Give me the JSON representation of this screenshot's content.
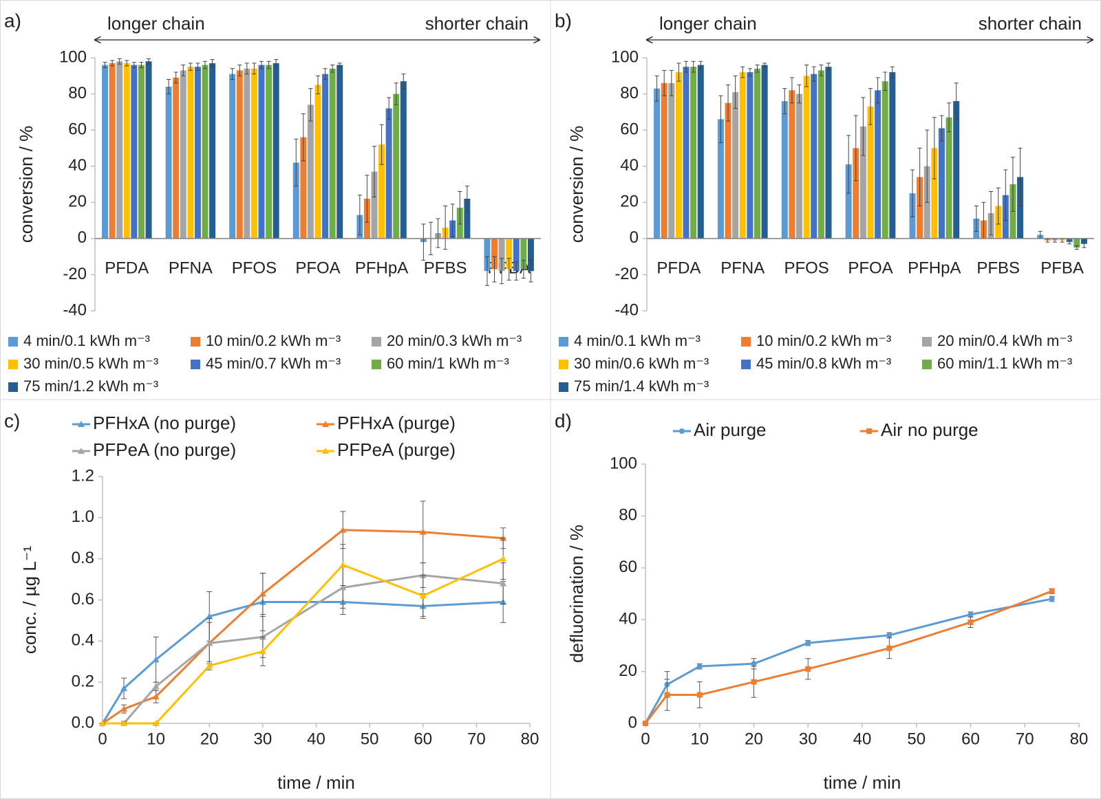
{
  "chart_data": [
    {
      "type": "bar",
      "label": "a)",
      "ylabel": "conversion / %",
      "annotations": [
        "longer chain",
        "shorter chain"
      ],
      "categories": [
        "PFDA",
        "PFNA",
        "PFOS",
        "PFOA",
        "PFHpA",
        "PFBS",
        "PFBA"
      ],
      "ylim": [
        -40,
        100
      ],
      "yticks": [
        -40,
        -20,
        0,
        20,
        40,
        60,
        80,
        100
      ],
      "grid": false,
      "series": [
        {
          "name": "4 min/0.1 kWh m⁻³",
          "color": "#5b9bd5",
          "values": [
            96,
            84,
            91,
            42,
            13,
            -2,
            -18
          ],
          "errors": [
            1.5,
            4,
            3,
            13,
            11,
            10,
            8
          ]
        },
        {
          "name": "10 min/0.2 kWh m⁻³",
          "color": "#ed7d31",
          "values": [
            97,
            89,
            93,
            56,
            22,
            0,
            -17
          ],
          "errors": [
            1.5,
            3,
            3,
            13,
            13,
            9,
            7
          ]
        },
        {
          "name": "20 min/0.3 kWh m⁻³",
          "color": "#a5a5a5",
          "values": [
            98,
            93,
            94,
            74,
            37,
            3,
            -18
          ],
          "errors": [
            1.5,
            3,
            3,
            9,
            14,
            8,
            7
          ]
        },
        {
          "name": "30 min/0.5 kWh m⁻³",
          "color": "#ffc000",
          "values": [
            97,
            95,
            94,
            85,
            52,
            6,
            -17
          ],
          "errors": [
            1.5,
            2,
            3,
            5,
            11,
            12,
            6
          ]
        },
        {
          "name": "45 min/0.7 kWh m⁻³",
          "color": "#4472c4",
          "values": [
            96,
            95,
            96,
            91,
            72,
            10,
            -18
          ],
          "errors": [
            1.5,
            2,
            2,
            3,
            6,
            9,
            5
          ]
        },
        {
          "name": "60 min/1 kWh m⁻³",
          "color": "#70ad47",
          "values": [
            96,
            96,
            96,
            94,
            80,
            17,
            -17
          ],
          "errors": [
            1.5,
            2,
            2,
            2,
            6,
            9,
            5
          ]
        },
        {
          "name": "75 min/1.2 kWh m⁻³",
          "color": "#255e91",
          "values": [
            98,
            97,
            97,
            96,
            87,
            22,
            -18
          ],
          "errors": [
            1.5,
            2,
            2,
            1,
            4,
            7,
            6
          ]
        }
      ]
    },
    {
      "type": "bar",
      "label": "b)",
      "ylabel": "conversion / %",
      "annotations": [
        "longer chain",
        "shorter chain"
      ],
      "categories": [
        "PFDA",
        "PFNA",
        "PFOS",
        "PFOA",
        "PFHpA",
        "PFBS",
        "PFBA"
      ],
      "ylim": [
        -40,
        100
      ],
      "yticks": [
        -40,
        -20,
        0,
        20,
        40,
        60,
        80,
        100
      ],
      "grid": false,
      "series": [
        {
          "name": "4 min/0.1 kWh m⁻³",
          "color": "#5b9bd5",
          "values": [
            83,
            66,
            76,
            41,
            25,
            11,
            2
          ],
          "errors": [
            7,
            13,
            7,
            16,
            13,
            7,
            2
          ]
        },
        {
          "name": "10 min/0.2 kWh m⁻³",
          "color": "#ed7d31",
          "values": [
            86,
            75,
            82,
            50,
            34,
            10,
            -1
          ],
          "errors": [
            7,
            10,
            7,
            18,
            16,
            10,
            1
          ]
        },
        {
          "name": "20 min/0.4 kWh m⁻³",
          "color": "#a5a5a5",
          "values": [
            86,
            81,
            80,
            62,
            40,
            14,
            -1
          ],
          "errors": [
            7,
            9,
            5,
            16,
            20,
            12,
            1
          ]
        },
        {
          "name": "30 min/0.6 kWh m⁻³",
          "color": "#ffc000",
          "values": [
            92,
            92,
            90,
            73,
            50,
            18,
            -1
          ],
          "errors": [
            5,
            3,
            6,
            10,
            17,
            10,
            1
          ]
        },
        {
          "name": "45 min/0.8 kWh m⁻³",
          "color": "#4472c4",
          "values": [
            95,
            92,
            91,
            82,
            61,
            24,
            -2
          ],
          "errors": [
            3,
            2,
            4,
            7,
            7,
            14,
            1
          ]
        },
        {
          "name": "60 min/1.1 kWh m⁻³",
          "color": "#70ad47",
          "values": [
            95,
            94,
            93,
            87,
            67,
            30,
            -5
          ],
          "errors": [
            3,
            2,
            3,
            5,
            8,
            15,
            1
          ]
        },
        {
          "name": "75 min/1.4 kWh m⁻³",
          "color": "#255e91",
          "values": [
            96,
            96,
            95,
            92,
            76,
            34,
            -3
          ],
          "errors": [
            2,
            1,
            2,
            3,
            10,
            16,
            2
          ]
        }
      ]
    },
    {
      "type": "line",
      "label": "c)",
      "ylabel": "conc. / µg L⁻¹",
      "xlabel": "time / min",
      "x": [
        0,
        4,
        10,
        20,
        30,
        45,
        60,
        75
      ],
      "xlim": [
        0,
        80
      ],
      "xticks": [
        0,
        10,
        20,
        30,
        40,
        50,
        60,
        70,
        80
      ],
      "ylim": [
        0,
        1.2
      ],
      "yticks": [
        {
          "value": 0,
          "label": "0.0"
        },
        0.2,
        0.4,
        0.6,
        0.8,
        {
          "value": 1,
          "label": "1.0"
        },
        1.2
      ],
      "grid": false,
      "series": [
        {
          "name": "PFHxA (no purge)",
          "color": "#5b9bd5",
          "marker": "triangle",
          "values": [
            0,
            0.17,
            0.31,
            0.52,
            0.59,
            0.59,
            0.57,
            0.59
          ],
          "errors": [
            0,
            0.05,
            0.11,
            0.12,
            0.14,
            0.06,
            0.06,
            0.1
          ]
        },
        {
          "name": "PFHxA (purge)",
          "color": "#ed7d31",
          "marker": "triangle",
          "values": [
            0,
            0.07,
            0.13,
            0.39,
            0.63,
            0.94,
            0.93,
            0.9
          ],
          "errors": [
            0,
            0.02,
            0.03,
            0.12,
            0.1,
            0.09,
            0.15,
            0.05
          ]
        },
        {
          "name": "PFPeA (no purge)",
          "color": "#a5a5a5",
          "marker": "triangle",
          "values": [
            0,
            0,
            0.18,
            0.39,
            0.42,
            0.66,
            0.72,
            0.68
          ],
          "errors": [
            0,
            0.01,
            0.02,
            0.1,
            0.1,
            0.1,
            0.06,
            0.1
          ]
        },
        {
          "name": "PFPeA (purge)",
          "color": "#ffc000",
          "marker": "triangle",
          "values": [
            0,
            0,
            0,
            0.28,
            0.35,
            0.77,
            0.62,
            0.8
          ],
          "errors": [
            0,
            0,
            0,
            0.02,
            0.07,
            0.1,
            0.1,
            0.1
          ]
        }
      ]
    },
    {
      "type": "line",
      "label": "d)",
      "ylabel": "defluorination / %",
      "xlabel": "time / min",
      "x": [
        0,
        4,
        10,
        20,
        30,
        45,
        60,
        75
      ],
      "xlim": [
        0,
        80
      ],
      "xticks": [
        0,
        10,
        20,
        30,
        40,
        50,
        60,
        70,
        80
      ],
      "ylim": [
        0,
        100
      ],
      "yticks": [
        0,
        20,
        40,
        60,
        80,
        100
      ],
      "grid": false,
      "series": [
        {
          "name": "Air purge",
          "color": "#5b9bd5",
          "marker": "circle",
          "values": [
            0,
            15,
            22,
            23,
            31,
            34,
            42,
            48
          ],
          "errors": [
            0,
            5,
            1,
            2,
            1,
            1,
            1,
            1
          ]
        },
        {
          "name": "Air no purge",
          "color": "#ed7d31",
          "marker": "square",
          "values": [
            0,
            11,
            11,
            16,
            21,
            29,
            39,
            51
          ],
          "errors": [
            0,
            6,
            5,
            6,
            4,
            4,
            2,
            1
          ]
        }
      ]
    }
  ]
}
